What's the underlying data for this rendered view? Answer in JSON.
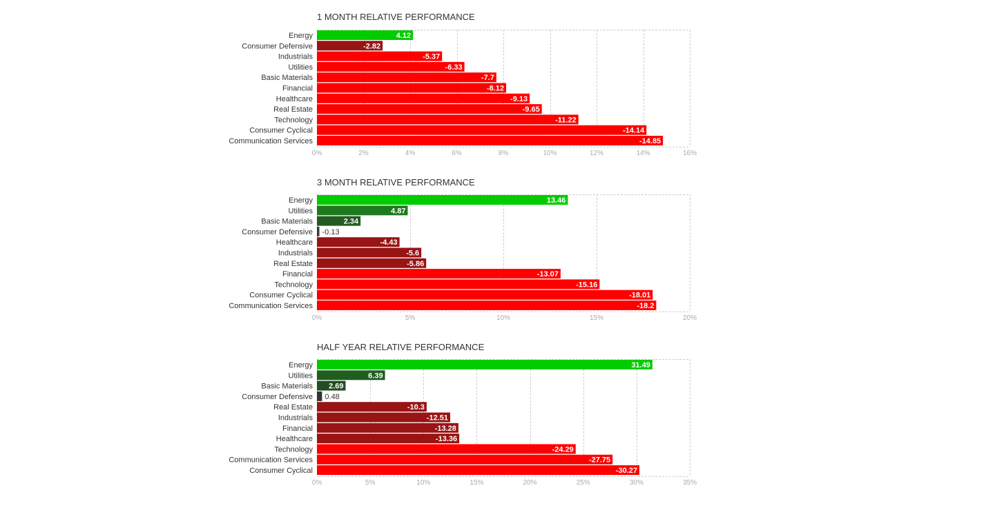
{
  "chart_data": [
    {
      "type": "bar",
      "orientation": "horizontal",
      "title": "1 MONTH RELATIVE PERFORMANCE",
      "categories": [
        "Energy",
        "Consumer Defensive",
        "Industrials",
        "Utilities",
        "Basic Materials",
        "Financial",
        "Healthcare",
        "Real Estate",
        "Technology",
        "Consumer Cyclical",
        "Communication Services"
      ],
      "values": [
        4.12,
        -2.82,
        -5.37,
        -6.33,
        -7.7,
        -8.12,
        -9.13,
        -9.65,
        -11.22,
        -14.14,
        -14.85
      ],
      "value_labels": [
        "4.12",
        "-2.82",
        "-5.37",
        "-6.33",
        "-7.7",
        "-8.12",
        "-9.13",
        "-9.65",
        "-11.22",
        "-14.14",
        "-14.85"
      ],
      "bar_colors": [
        "#00cc00",
        "#991414",
        "#ff0000",
        "#ff0000",
        "#ff0000",
        "#ff0000",
        "#ff0000",
        "#ff0000",
        "#ff0000",
        "#ff0000",
        "#ff0000"
      ],
      "bar_length": "absolute value",
      "xlim": [
        0,
        16
      ],
      "x_ticks": [
        0,
        2,
        4,
        6,
        8,
        10,
        12,
        14,
        16
      ],
      "x_tick_labels": [
        "0%",
        "2%",
        "4%",
        "6%",
        "8%",
        "10%",
        "12%",
        "14%",
        "16%"
      ],
      "grid": true
    },
    {
      "type": "bar",
      "orientation": "horizontal",
      "title": "3 MONTH RELATIVE PERFORMANCE",
      "categories": [
        "Energy",
        "Utilities",
        "Basic Materials",
        "Consumer Defensive",
        "Healthcare",
        "Industrials",
        "Real Estate",
        "Financial",
        "Technology",
        "Consumer Cyclical",
        "Communication Services"
      ],
      "values": [
        13.46,
        4.87,
        2.34,
        -0.13,
        -4.43,
        -5.6,
        -5.86,
        -13.07,
        -15.16,
        -18.01,
        -18.2
      ],
      "value_labels": [
        "13.46",
        "4.87",
        "2.34",
        "-0.13",
        "-4.43",
        "-5.6",
        "-5.86",
        "-13.07",
        "-15.16",
        "-18.01",
        "-18.2"
      ],
      "bar_colors": [
        "#00cc00",
        "#1f7a1f",
        "#235c23",
        "#3b3b3b",
        "#991414",
        "#991414",
        "#991414",
        "#ff0000",
        "#ff0000",
        "#ff0000",
        "#ff0000"
      ],
      "bar_length": "absolute value",
      "xlim": [
        0,
        20
      ],
      "x_ticks": [
        0,
        5,
        10,
        15,
        20
      ],
      "x_tick_labels": [
        "0%",
        "5%",
        "10%",
        "15%",
        "20%"
      ],
      "grid": true
    },
    {
      "type": "bar",
      "orientation": "horizontal",
      "title": "HALF YEAR RELATIVE PERFORMANCE",
      "categories": [
        "Energy",
        "Utilities",
        "Basic Materials",
        "Consumer Defensive",
        "Real Estate",
        "Industrials",
        "Financial",
        "Healthcare",
        "Technology",
        "Communication Services",
        "Consumer Cyclical"
      ],
      "values": [
        31.49,
        6.39,
        2.69,
        0.48,
        -10.3,
        -12.51,
        -13.28,
        -13.36,
        -24.29,
        -27.75,
        -30.27
      ],
      "value_labels": [
        "31.49",
        "6.39",
        "2.69",
        "0.48",
        "-10.3",
        "-12.51",
        "-13.28",
        "-13.36",
        "-24.29",
        "-27.75",
        "-30.27"
      ],
      "bar_colors": [
        "#00cc00",
        "#1f5e1f",
        "#234d23",
        "#333333",
        "#991414",
        "#991414",
        "#991414",
        "#991414",
        "#ff0000",
        "#ff0000",
        "#ff0000"
      ],
      "bar_length": "absolute value",
      "xlim": [
        0,
        35
      ],
      "x_ticks": [
        0,
        5,
        10,
        15,
        20,
        25,
        30,
        35
      ],
      "x_tick_labels": [
        "0%",
        "5%",
        "10%",
        "15%",
        "20%",
        "25%",
        "30%",
        "35%"
      ],
      "grid": true
    }
  ],
  "colors": {
    "title_text": "#333333",
    "category_label": "#333333",
    "tick_label": "#aaaaaa",
    "grid": "#cccccc",
    "bar_label_inside": "#ffffff",
    "bar_label_outside": "#333333"
  }
}
